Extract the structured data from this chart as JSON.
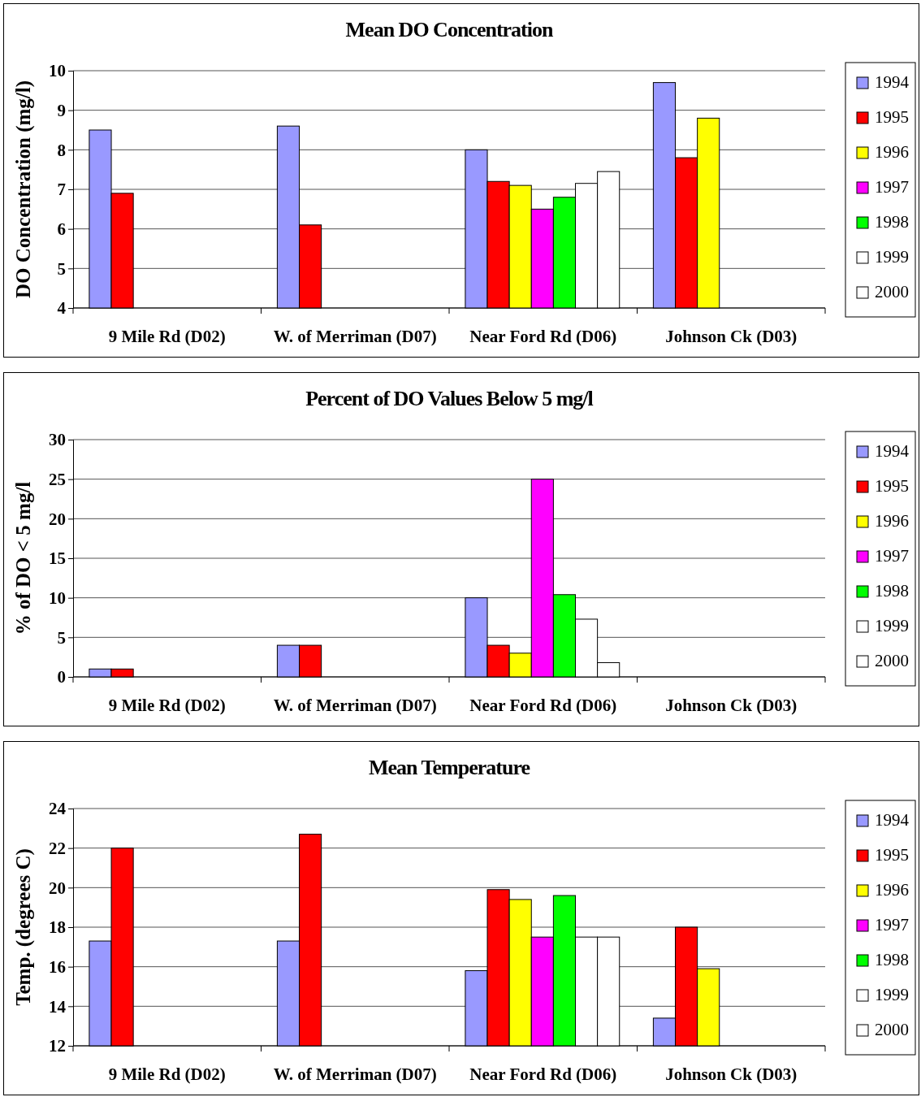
{
  "chart_data": [
    {
      "type": "bar",
      "title": "Mean DO Concentration",
      "ylabel": "DO Concentration (mg/l)",
      "categories": [
        "9 Mile Rd (D02)",
        "W. of Merriman (D07)",
        "Near Ford  Rd (D06)",
        "Johnson Ck (D03)"
      ],
      "ylim": [
        4,
        10
      ],
      "yticks": [
        4,
        5,
        6,
        7,
        8,
        9,
        10
      ],
      "grid": "y",
      "legend": "right",
      "series": [
        {
          "name": "1994",
          "color": "#9999ff",
          "values": [
            8.5,
            8.6,
            8.0,
            9.7
          ]
        },
        {
          "name": "1995",
          "color": "#ff0000",
          "values": [
            6.9,
            6.1,
            7.2,
            7.8
          ]
        },
        {
          "name": "1996",
          "color": "#ffff00",
          "values": [
            null,
            null,
            7.1,
            8.8
          ]
        },
        {
          "name": "1997",
          "color": "#ff00ff",
          "values": [
            null,
            null,
            6.5,
            null
          ]
        },
        {
          "name": "1998",
          "color": "#00ff00",
          "values": [
            null,
            null,
            6.8,
            null
          ]
        },
        {
          "name": "1999",
          "color": "#ffffff",
          "values": [
            null,
            null,
            7.15,
            null
          ]
        },
        {
          "name": "2000",
          "color": "#ffffff",
          "values": [
            null,
            null,
            7.45,
            null
          ]
        }
      ]
    },
    {
      "type": "bar",
      "title": "Percent of DO Values Below 5 mg/l",
      "ylabel": "% of DO < 5 mg/l",
      "categories": [
        "9 Mile Rd (D02)",
        "W. of Merriman (D07)",
        "Near Ford Rd (D06)",
        "Johnson Ck (D03)"
      ],
      "ylim": [
        0,
        30
      ],
      "yticks": [
        0,
        5,
        10,
        15,
        20,
        25,
        30
      ],
      "grid": "y",
      "legend": "right",
      "series": [
        {
          "name": "1994",
          "color": "#9999ff",
          "values": [
            1.0,
            4,
            10,
            null
          ]
        },
        {
          "name": "1995",
          "color": "#ff0000",
          "values": [
            1.0,
            4,
            4,
            null
          ]
        },
        {
          "name": "1996",
          "color": "#ffff00",
          "values": [
            null,
            null,
            3,
            null
          ]
        },
        {
          "name": "1997",
          "color": "#ff00ff",
          "values": [
            null,
            null,
            25,
            null
          ]
        },
        {
          "name": "1998",
          "color": "#00ff00",
          "values": [
            null,
            null,
            10.4,
            null
          ]
        },
        {
          "name": "1999",
          "color": "#ffffff",
          "values": [
            null,
            null,
            7.3,
            null
          ]
        },
        {
          "name": "2000",
          "color": "#ffffff",
          "values": [
            null,
            null,
            1.8,
            null
          ]
        }
      ]
    },
    {
      "type": "bar",
      "title": "Mean Temperature",
      "ylabel": "Temp. (degrees C)",
      "categories": [
        "9 Mile Rd (D02)",
        "W. of Merriman (D07)",
        "Near Ford Rd (D06)",
        "Johnson Ck (D03)"
      ],
      "ylim": [
        12,
        24
      ],
      "yticks": [
        12,
        14,
        16,
        18,
        20,
        22,
        24
      ],
      "grid": "y",
      "legend": "right",
      "series": [
        {
          "name": "1994",
          "color": "#9999ff",
          "values": [
            17.3,
            17.3,
            15.8,
            13.4
          ]
        },
        {
          "name": "1995",
          "color": "#ff0000",
          "values": [
            22.0,
            22.7,
            19.9,
            18.0
          ]
        },
        {
          "name": "1996",
          "color": "#ffff00",
          "values": [
            null,
            null,
            19.4,
            15.9
          ]
        },
        {
          "name": "1997",
          "color": "#ff00ff",
          "values": [
            null,
            null,
            17.5,
            null
          ]
        },
        {
          "name": "1998",
          "color": "#00ff00",
          "values": [
            null,
            null,
            19.6,
            null
          ]
        },
        {
          "name": "1999",
          "color": "#ffffff",
          "values": [
            null,
            null,
            17.5,
            null
          ]
        },
        {
          "name": "2000",
          "color": "#ffffff",
          "values": [
            null,
            null,
            17.5,
            null
          ]
        }
      ]
    }
  ]
}
